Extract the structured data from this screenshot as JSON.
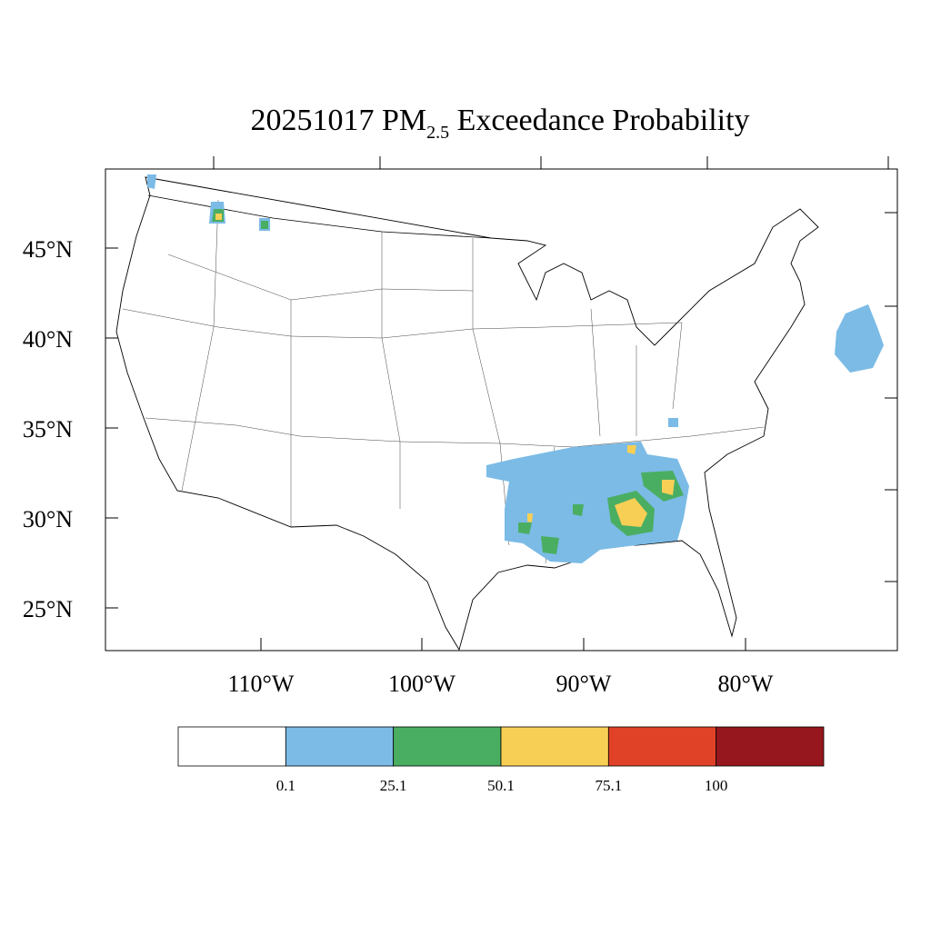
{
  "header": {
    "title": {
      "text": "20251017 PM",
      "subscript": "2.5",
      "suffix": " Exceedance Probability"
    }
  },
  "map": {
    "lat_labels": [
      "45°N",
      "40°N",
      "35°N",
      "30°N",
      "25°N"
    ],
    "lon_labels": [
      "110°W",
      "100°W",
      "90°W",
      "80°W"
    ]
  },
  "colorbar": {
    "colors": [
      "#ffffff",
      "#7bbbe6",
      "#4aae62",
      "#f8cf55",
      "#e04228",
      "#96171d"
    ],
    "labels": [
      "0.1",
      "25.1",
      "50.1",
      "75.1",
      "100"
    ]
  }
}
